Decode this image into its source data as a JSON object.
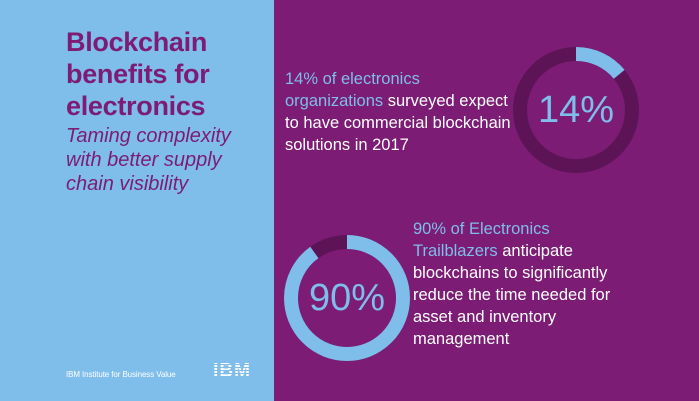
{
  "header": {
    "title": "Blockchain benefits for electronics",
    "subtitle": "Taming complexity with better supply chain visibility"
  },
  "stats": [
    {
      "highlight": "14% of electronics organizations",
      "rest": " surveyed expect to have commercial blockchain solutions in 2017"
    },
    {
      "highlight": "90% of Electronics Trailblazers",
      "rest": " anticipate blockchains to significantly reduce the time needed for asset and inventory management"
    }
  ],
  "chart_data": [
    {
      "type": "pie",
      "label": "14%",
      "value": 14,
      "max": 100
    },
    {
      "type": "pie",
      "label": "90%",
      "value": 90,
      "max": 100
    }
  ],
  "footer": {
    "org": "IBM Institute for Business Value",
    "logo": "IBM"
  },
  "colors": {
    "left_bg": "#7fbdea",
    "right_bg": "#7c1c74",
    "ring_track": "#5c1456",
    "ring_fill": "#7fbdea",
    "text_light": "#ffffff"
  }
}
